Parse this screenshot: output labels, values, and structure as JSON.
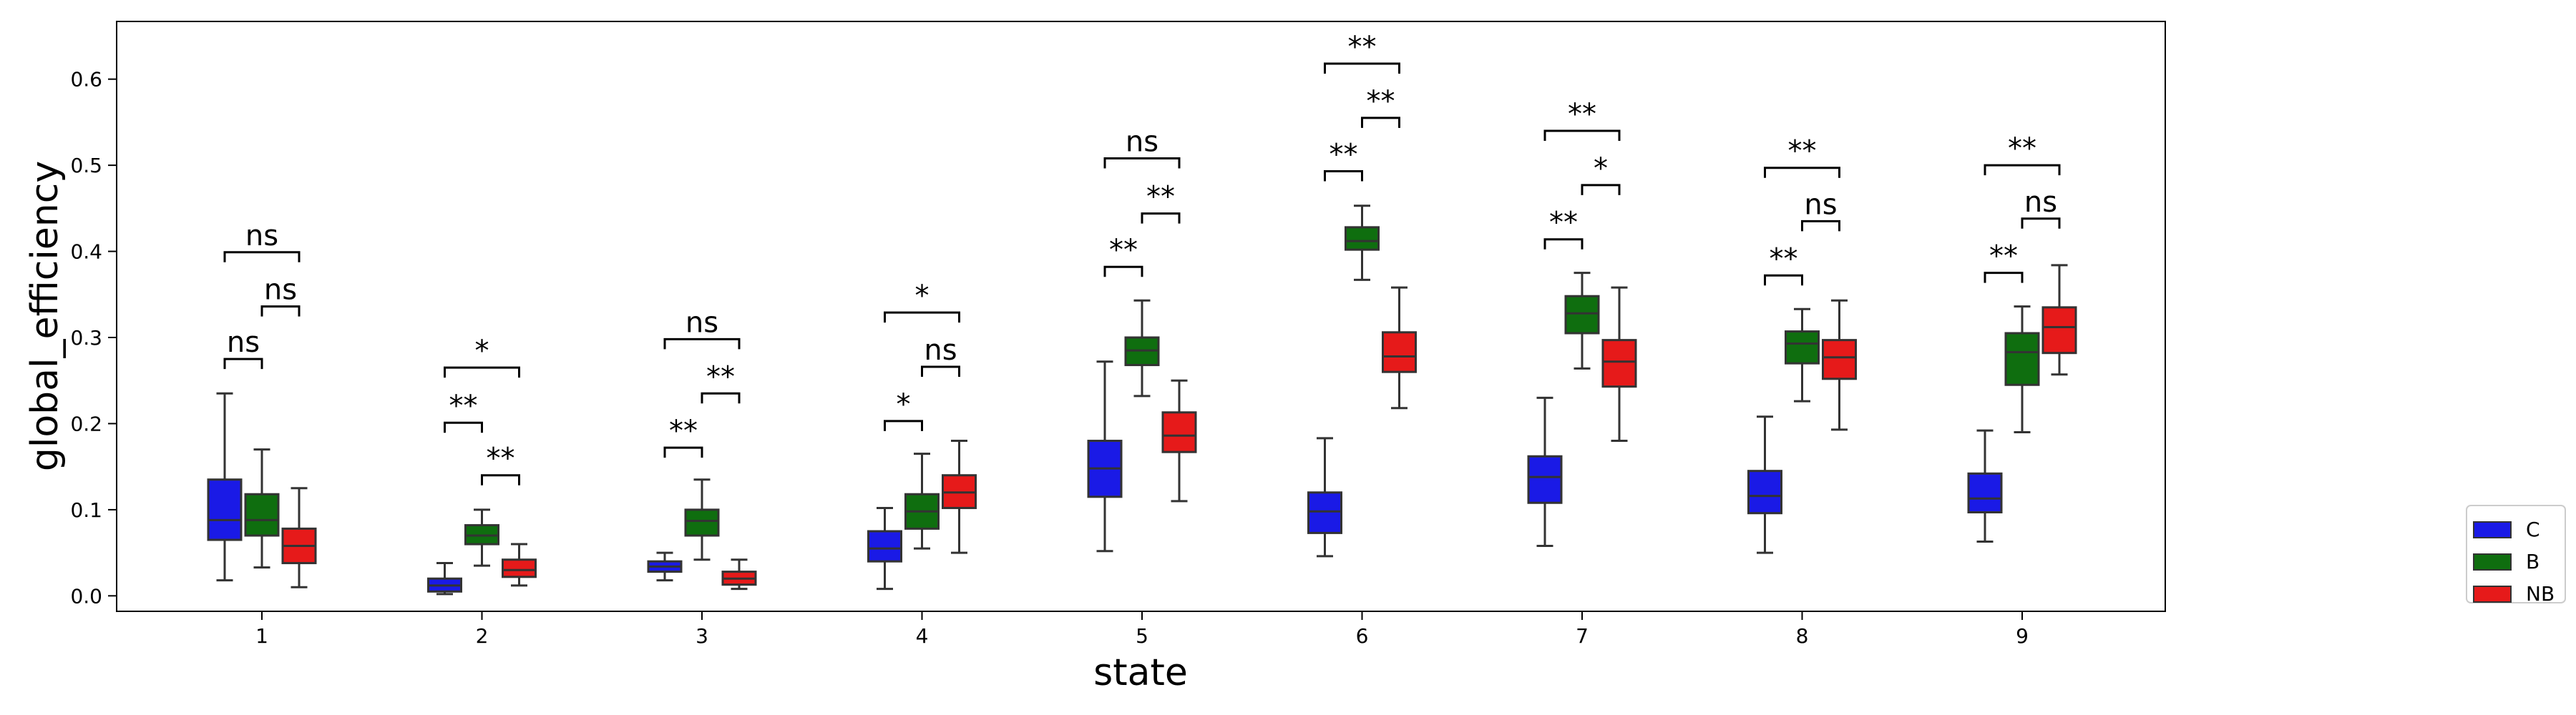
{
  "chart_data": {
    "type": "box",
    "xlabel": "state",
    "ylabel": "global_efficiency",
    "categories": [
      "1",
      "2",
      "3",
      "4",
      "5",
      "6",
      "7",
      "8",
      "9"
    ],
    "ylim": [
      -0.018,
      0.667
    ],
    "yticks": [
      0.0,
      0.1,
      0.2,
      0.3,
      0.4,
      0.5,
      0.6
    ],
    "ytick_labels": [
      "0.0",
      "0.1",
      "0.2",
      "0.3",
      "0.4",
      "0.5",
      "0.6"
    ],
    "grid": false,
    "legend_placement": "right, outside plot, bottom",
    "series": [
      {
        "name": "C",
        "color": "#1a1ae6",
        "boxes": [
          {
            "whislo": 0.018,
            "q1": 0.065,
            "med": 0.088,
            "q3": 0.135,
            "whishi": 0.235
          },
          {
            "whislo": 0.002,
            "q1": 0.005,
            "med": 0.012,
            "q3": 0.02,
            "whishi": 0.038
          },
          {
            "whislo": 0.018,
            "q1": 0.028,
            "med": 0.034,
            "q3": 0.04,
            "whishi": 0.05
          },
          {
            "whislo": 0.008,
            "q1": 0.04,
            "med": 0.055,
            "q3": 0.075,
            "whishi": 0.102
          },
          {
            "whislo": 0.052,
            "q1": 0.115,
            "med": 0.148,
            "q3": 0.18,
            "whishi": 0.272
          },
          {
            "whislo": 0.046,
            "q1": 0.073,
            "med": 0.098,
            "q3": 0.12,
            "whishi": 0.183
          },
          {
            "whislo": 0.058,
            "q1": 0.108,
            "med": 0.138,
            "q3": 0.162,
            "whishi": 0.23
          },
          {
            "whislo": 0.05,
            "q1": 0.096,
            "med": 0.116,
            "q3": 0.145,
            "whishi": 0.208
          },
          {
            "whislo": 0.063,
            "q1": 0.097,
            "med": 0.113,
            "q3": 0.142,
            "whishi": 0.192
          }
        ]
      },
      {
        "name": "B",
        "color": "#0f6e0f",
        "boxes": [
          {
            "whislo": 0.033,
            "q1": 0.07,
            "med": 0.088,
            "q3": 0.118,
            "whishi": 0.17
          },
          {
            "whislo": 0.035,
            "q1": 0.06,
            "med": 0.07,
            "q3": 0.082,
            "whishi": 0.1
          },
          {
            "whislo": 0.042,
            "q1": 0.07,
            "med": 0.087,
            "q3": 0.1,
            "whishi": 0.135
          },
          {
            "whislo": 0.055,
            "q1": 0.078,
            "med": 0.098,
            "q3": 0.118,
            "whishi": 0.165
          },
          {
            "whislo": 0.232,
            "q1": 0.268,
            "med": 0.285,
            "q3": 0.3,
            "whishi": 0.343
          },
          {
            "whislo": 0.367,
            "q1": 0.402,
            "med": 0.412,
            "q3": 0.428,
            "whishi": 0.453
          },
          {
            "whislo": 0.264,
            "q1": 0.305,
            "med": 0.328,
            "q3": 0.348,
            "whishi": 0.375
          },
          {
            "whislo": 0.226,
            "q1": 0.27,
            "med": 0.293,
            "q3": 0.307,
            "whishi": 0.333
          },
          {
            "whislo": 0.19,
            "q1": 0.245,
            "med": 0.283,
            "q3": 0.305,
            "whishi": 0.336
          }
        ]
      },
      {
        "name": "NB",
        "color": "#e61a1a",
        "boxes": [
          {
            "whislo": 0.01,
            "q1": 0.038,
            "med": 0.058,
            "q3": 0.078,
            "whishi": 0.125
          },
          {
            "whislo": 0.012,
            "q1": 0.022,
            "med": 0.03,
            "q3": 0.042,
            "whishi": 0.06
          },
          {
            "whislo": 0.008,
            "q1": 0.013,
            "med": 0.02,
            "q3": 0.028,
            "whishi": 0.042
          },
          {
            "whislo": 0.05,
            "q1": 0.102,
            "med": 0.12,
            "q3": 0.14,
            "whishi": 0.18
          },
          {
            "whislo": 0.11,
            "q1": 0.167,
            "med": 0.186,
            "q3": 0.213,
            "whishi": 0.25
          },
          {
            "whislo": 0.218,
            "q1": 0.26,
            "med": 0.278,
            "q3": 0.306,
            "whishi": 0.358
          },
          {
            "whislo": 0.18,
            "q1": 0.243,
            "med": 0.272,
            "q3": 0.297,
            "whishi": 0.358
          },
          {
            "whislo": 0.193,
            "q1": 0.252,
            "med": 0.277,
            "q3": 0.297,
            "whishi": 0.343
          },
          {
            "whislo": 0.257,
            "q1": 0.282,
            "med": 0.312,
            "q3": 0.335,
            "whishi": 0.384
          }
        ]
      }
    ],
    "annotations": [
      {
        "category": "1",
        "from": "C",
        "to": "B",
        "y": 0.275,
        "label": "ns"
      },
      {
        "category": "1",
        "from": "B",
        "to": "NB",
        "y": 0.336,
        "label": "ns"
      },
      {
        "category": "1",
        "from": "C",
        "to": "NB",
        "y": 0.399,
        "label": "ns"
      },
      {
        "category": "2",
        "from": "B",
        "to": "NB",
        "y": 0.14,
        "label": "**"
      },
      {
        "category": "2",
        "from": "C",
        "to": "B",
        "y": 0.201,
        "label": "**"
      },
      {
        "category": "2",
        "from": "C",
        "to": "NB",
        "y": 0.265,
        "label": "*"
      },
      {
        "category": "3",
        "from": "C",
        "to": "B",
        "y": 0.172,
        "label": "**"
      },
      {
        "category": "3",
        "from": "B",
        "to": "NB",
        "y": 0.235,
        "label": "**"
      },
      {
        "category": "3",
        "from": "C",
        "to": "NB",
        "y": 0.298,
        "label": "ns"
      },
      {
        "category": "4",
        "from": "C",
        "to": "B",
        "y": 0.203,
        "label": "*"
      },
      {
        "category": "4",
        "from": "B",
        "to": "NB",
        "y": 0.266,
        "label": "ns"
      },
      {
        "category": "4",
        "from": "C",
        "to": "NB",
        "y": 0.329,
        "label": "*"
      },
      {
        "category": "5",
        "from": "C",
        "to": "B",
        "y": 0.382,
        "label": "**"
      },
      {
        "category": "5",
        "from": "B",
        "to": "NB",
        "y": 0.444,
        "label": "**"
      },
      {
        "category": "5",
        "from": "C",
        "to": "NB",
        "y": 0.508,
        "label": "ns"
      },
      {
        "category": "6",
        "from": "C",
        "to": "B",
        "y": 0.493,
        "label": "**"
      },
      {
        "category": "6",
        "from": "B",
        "to": "NB",
        "y": 0.555,
        "label": "**"
      },
      {
        "category": "6",
        "from": "C",
        "to": "NB",
        "y": 0.618,
        "label": "**"
      },
      {
        "category": "7",
        "from": "C",
        "to": "B",
        "y": 0.414,
        "label": "**"
      },
      {
        "category": "7",
        "from": "B",
        "to": "NB",
        "y": 0.477,
        "label": "*"
      },
      {
        "category": "7",
        "from": "C",
        "to": "NB",
        "y": 0.54,
        "label": "**"
      },
      {
        "category": "8",
        "from": "C",
        "to": "B",
        "y": 0.372,
        "label": "**"
      },
      {
        "category": "8",
        "from": "B",
        "to": "NB",
        "y": 0.435,
        "label": "ns"
      },
      {
        "category": "8",
        "from": "C",
        "to": "NB",
        "y": 0.497,
        "label": "**"
      },
      {
        "category": "9",
        "from": "C",
        "to": "B",
        "y": 0.375,
        "label": "**"
      },
      {
        "category": "9",
        "from": "B",
        "to": "NB",
        "y": 0.438,
        "label": "ns"
      },
      {
        "category": "9",
        "from": "C",
        "to": "NB",
        "y": 0.5,
        "label": "**"
      }
    ]
  }
}
